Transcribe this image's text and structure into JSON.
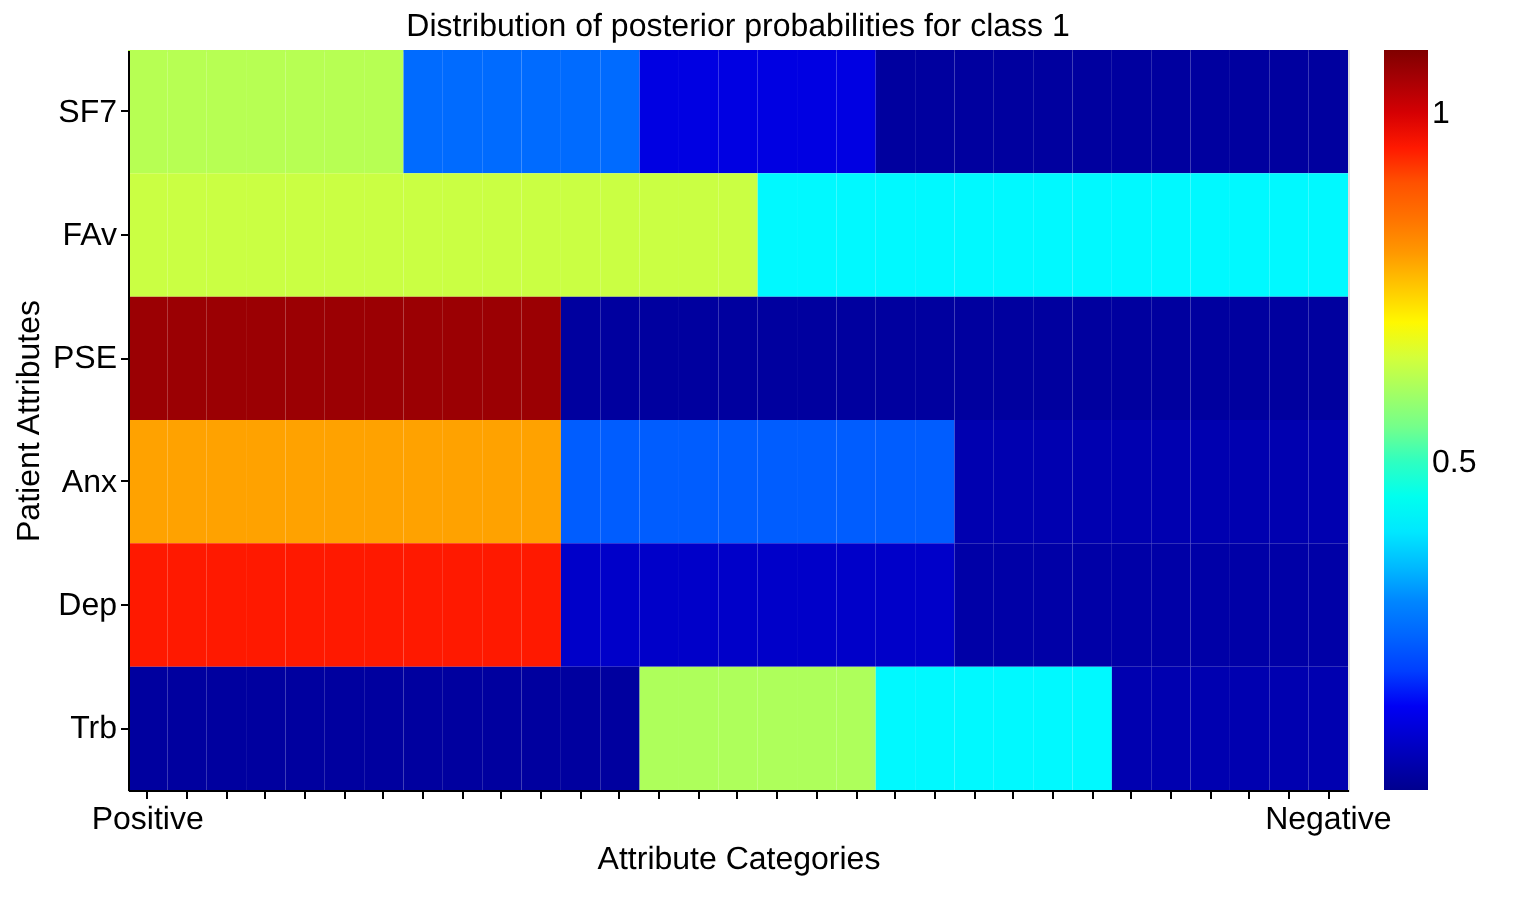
{
  "chart_data": {
    "type": "heatmap",
    "title": "Distribution of posterior probabilities for class 1",
    "xlabel": "Attribute Categories",
    "ylabel": "Patient Attributes",
    "categories": [
      "Positive",
      null,
      null,
      null,
      null,
      null,
      null,
      null,
      null,
      null,
      null,
      null,
      null,
      null,
      null,
      null,
      null,
      null,
      null,
      null,
      null,
      null,
      null,
      null,
      null,
      null,
      null,
      null,
      null,
      null,
      "Negative"
    ],
    "y_categories": [
      "SF7",
      "FAv",
      "PSE",
      "Anx",
      "Dep",
      "Trb"
    ],
    "cells": [
      [
        0.62,
        0.62,
        0.62,
        0.62,
        0.62,
        0.62,
        0.62,
        0.26,
        0.26,
        0.26,
        0.26,
        0.26,
        0.26,
        0.13,
        0.13,
        0.13,
        0.13,
        0.13,
        0.13,
        0.05,
        0.05,
        0.05,
        0.05,
        0.05,
        0.05,
        0.05,
        0.05,
        0.05,
        0.05,
        0.05,
        0.05
      ],
      [
        0.64,
        0.64,
        0.64,
        0.64,
        0.64,
        0.64,
        0.64,
        0.64,
        0.64,
        0.64,
        0.64,
        0.64,
        0.64,
        0.64,
        0.64,
        0.64,
        0.42,
        0.42,
        0.42,
        0.42,
        0.42,
        0.42,
        0.42,
        0.42,
        0.42,
        0.42,
        0.42,
        0.42,
        0.42,
        0.42,
        0.42
      ],
      [
        1.06,
        1.06,
        1.06,
        1.06,
        1.06,
        1.06,
        1.06,
        1.06,
        1.06,
        1.06,
        1.06,
        0.05,
        0.05,
        0.05,
        0.05,
        0.05,
        0.05,
        0.05,
        0.05,
        0.05,
        0.05,
        0.05,
        0.05,
        0.05,
        0.05,
        0.05,
        0.05,
        0.05,
        0.05,
        0.05,
        0.05
      ],
      [
        0.79,
        0.79,
        0.79,
        0.79,
        0.79,
        0.79,
        0.79,
        0.79,
        0.79,
        0.79,
        0.79,
        0.24,
        0.24,
        0.24,
        0.24,
        0.24,
        0.24,
        0.24,
        0.24,
        0.24,
        0.24,
        0.07,
        0.07,
        0.07,
        0.07,
        0.07,
        0.07,
        0.07,
        0.07,
        0.07,
        0.07
      ],
      [
        0.95,
        0.95,
        0.95,
        0.95,
        0.95,
        0.95,
        0.95,
        0.95,
        0.95,
        0.95,
        0.95,
        0.1,
        0.1,
        0.1,
        0.1,
        0.1,
        0.1,
        0.1,
        0.1,
        0.1,
        0.1,
        0.06,
        0.06,
        0.06,
        0.06,
        0.06,
        0.06,
        0.06,
        0.06,
        0.06,
        0.06
      ],
      [
        0.05,
        0.05,
        0.05,
        0.05,
        0.05,
        0.05,
        0.05,
        0.05,
        0.05,
        0.05,
        0.05,
        0.05,
        0.05,
        0.61,
        0.61,
        0.61,
        0.61,
        0.61,
        0.61,
        0.42,
        0.42,
        0.42,
        0.42,
        0.42,
        0.42,
        0.07,
        0.07,
        0.07,
        0.07,
        0.07,
        0.07
      ]
    ],
    "clim": [
      0.03,
      1.09
    ],
    "cticks": [
      0.5,
      1
    ],
    "grid": false
  }
}
